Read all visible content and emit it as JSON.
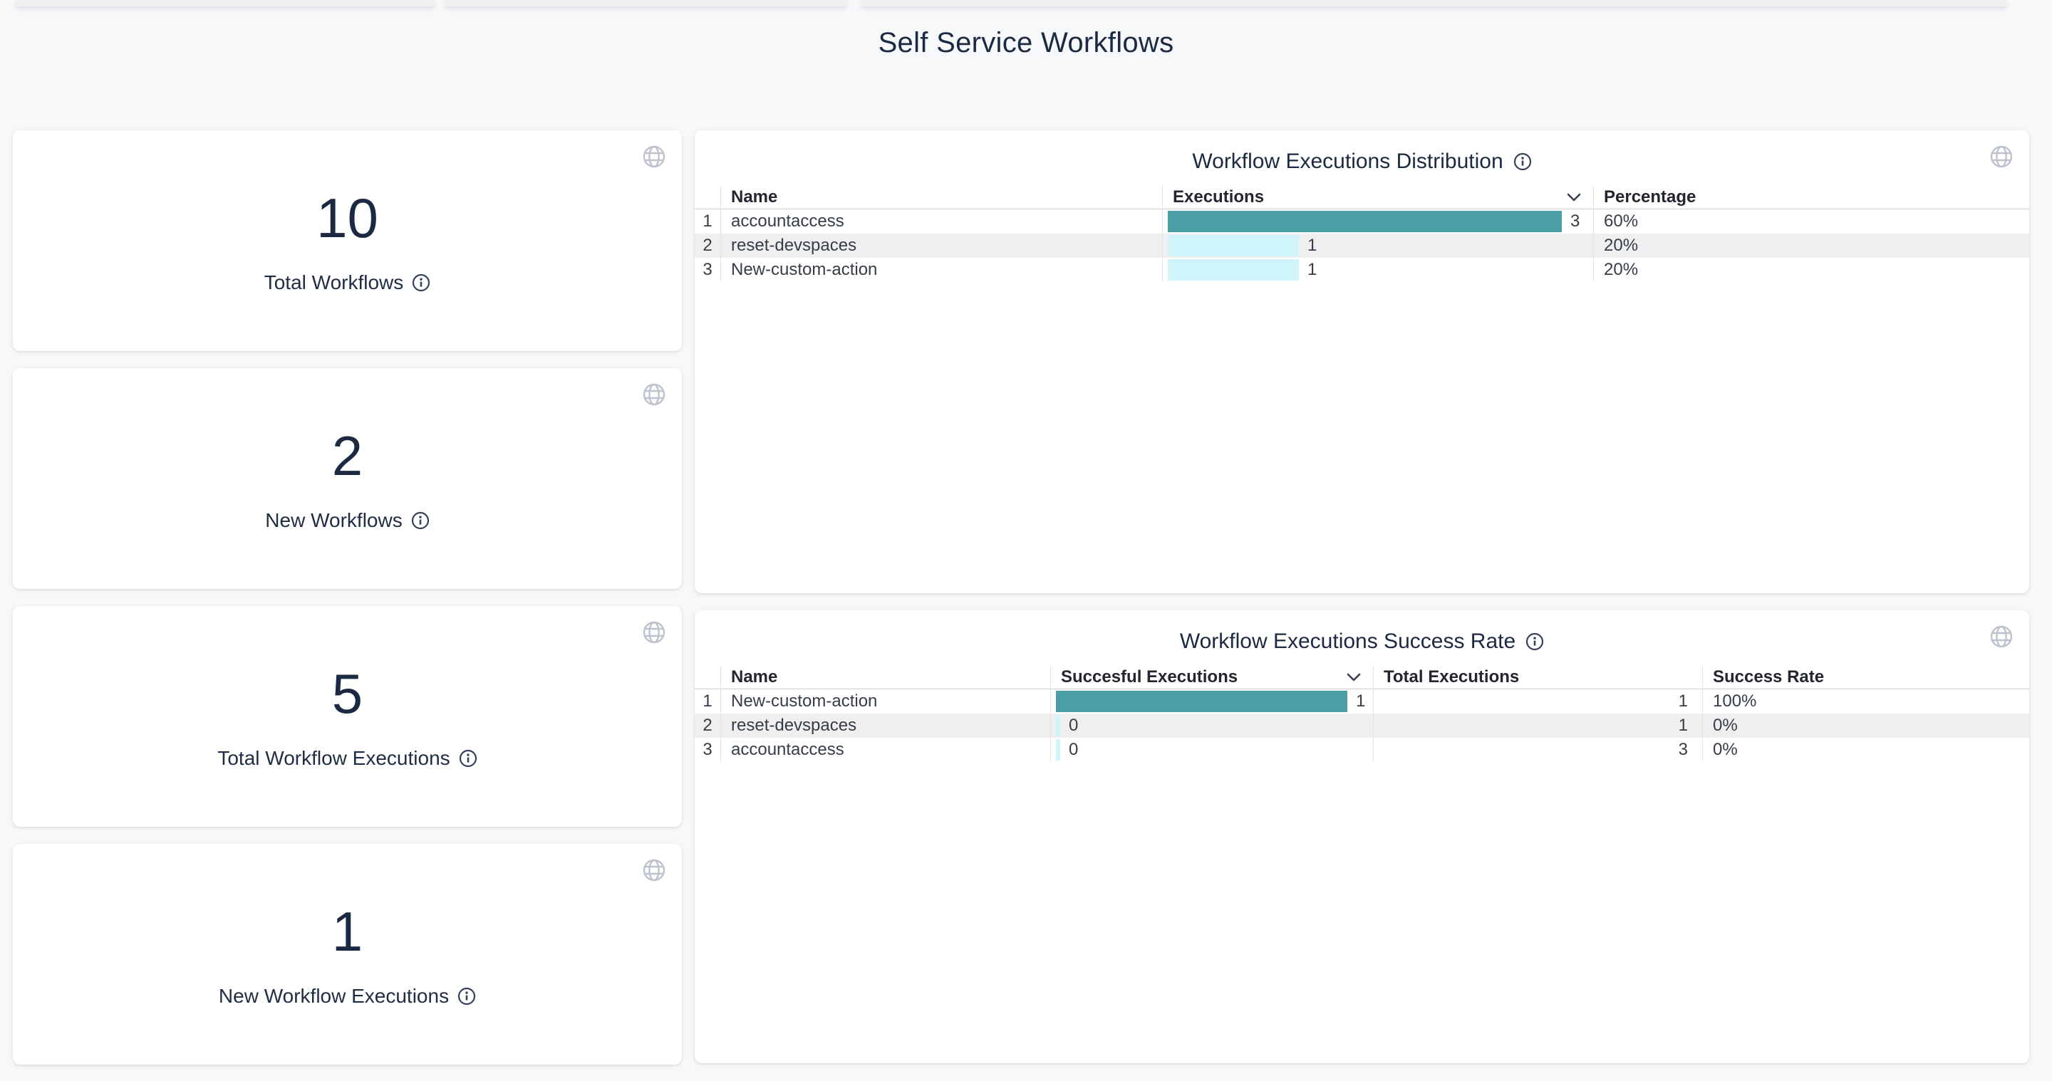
{
  "page": {
    "title": "Self Service Workflows"
  },
  "stat_cards": [
    {
      "value": "10",
      "label": "Total Workflows"
    },
    {
      "value": "2",
      "label": "New Workflows"
    },
    {
      "value": "5",
      "label": "Total Workflow Executions"
    },
    {
      "value": "1",
      "label": "New Workflow Executions"
    }
  ],
  "panels": [
    {
      "title": "Workflow Executions Distribution",
      "headers": {
        "name": "Name",
        "executions": "Executions",
        "percentage": "Percentage"
      },
      "max_value": 3,
      "rows": [
        {
          "num": "1",
          "name": "accountaccess",
          "executions": 3,
          "percentage": "60%"
        },
        {
          "num": "2",
          "name": "reset-devspaces",
          "executions": 1,
          "percentage": "20%"
        },
        {
          "num": "3",
          "name": "New-custom-action",
          "executions": 1,
          "percentage": "20%"
        }
      ]
    },
    {
      "title": "Workflow Executions Success Rate",
      "headers": {
        "name": "Name",
        "successful": "Succesful Executions",
        "total": "Total Executions",
        "rate": "Success Rate"
      },
      "max_value": 1,
      "rows": [
        {
          "num": "1",
          "name": "New-custom-action",
          "successful": 1,
          "total": "1",
          "rate": "100%"
        },
        {
          "num": "2",
          "name": "reset-devspaces",
          "successful": 0,
          "total": "1",
          "rate": "0%"
        },
        {
          "num": "3",
          "name": "accountaccess",
          "successful": 0,
          "total": "3",
          "rate": "0%"
        }
      ]
    }
  ],
  "colors": {
    "bar_high": "#4A9FA7",
    "bar_low": "#CFF5FB",
    "title_text": "#1B2A42"
  }
}
